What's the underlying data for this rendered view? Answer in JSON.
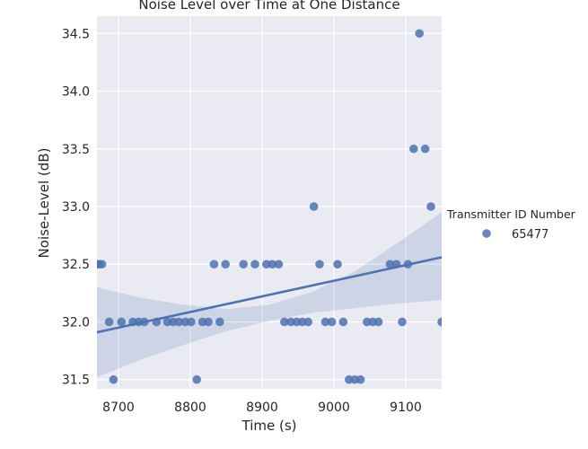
{
  "chart_data": {
    "type": "scatter",
    "title": "Noise Level over Time at One Distance",
    "xlabel": "Time (s)",
    "ylabel": "Noise-Level (dB)",
    "xlim": [
      8670,
      9150
    ],
    "ylim": [
      31.42,
      34.65
    ],
    "xticks": [
      8700,
      8800,
      8900,
      9000,
      9100
    ],
    "yticks": [
      31.5,
      32.0,
      32.5,
      33.0,
      33.5,
      34.0,
      34.5
    ],
    "xtick_labels": [
      "8700",
      "8800",
      "8900",
      "9000",
      "9100"
    ],
    "ytick_labels": [
      "31.5",
      "32.0",
      "32.5",
      "33.0",
      "33.5",
      "34.0",
      "34.5"
    ],
    "grid": true,
    "legend": {
      "title": "Transmitter ID Number",
      "placement": "right",
      "entries": [
        "65477"
      ]
    },
    "series": [
      {
        "name": "65477",
        "color": "#4c72b0",
        "points": [
          [
            8670,
            32.5
          ],
          [
            8673,
            32.5
          ],
          [
            8677,
            32.5
          ],
          [
            8687,
            32.0
          ],
          [
            8693,
            31.5
          ],
          [
            8704,
            32.0
          ],
          [
            8720,
            32.0
          ],
          [
            8728,
            32.0
          ],
          [
            8736,
            32.0
          ],
          [
            8753,
            32.0
          ],
          [
            8768,
            32.0
          ],
          [
            8776,
            32.0
          ],
          [
            8784,
            32.0
          ],
          [
            8793,
            32.0
          ],
          [
            8801,
            32.0
          ],
          [
            8809,
            31.5
          ],
          [
            8817,
            32.0
          ],
          [
            8825,
            32.0
          ],
          [
            8833,
            32.5
          ],
          [
            8841,
            32.0
          ],
          [
            8849,
            32.5
          ],
          [
            8874,
            32.5
          ],
          [
            8890,
            32.5
          ],
          [
            8906,
            32.5
          ],
          [
            8914,
            32.5
          ],
          [
            8923,
            32.5
          ],
          [
            8931,
            32.0
          ],
          [
            8940,
            32.0
          ],
          [
            8948,
            32.0
          ],
          [
            8956,
            32.0
          ],
          [
            8964,
            32.0
          ],
          [
            8972,
            33.0
          ],
          [
            8980,
            32.5
          ],
          [
            8988,
            32.0
          ],
          [
            8997,
            32.0
          ],
          [
            9005,
            32.5
          ],
          [
            9013,
            32.0
          ],
          [
            9021,
            31.5
          ],
          [
            9029,
            31.5
          ],
          [
            9037,
            31.5
          ],
          [
            9046,
            32.0
          ],
          [
            9054,
            32.0
          ],
          [
            9062,
            32.0
          ],
          [
            9078,
            32.5
          ],
          [
            9087,
            32.5
          ],
          [
            9095,
            32.0
          ],
          [
            9103,
            32.5
          ],
          [
            9111,
            33.5
          ],
          [
            9119,
            34.5
          ],
          [
            9127,
            33.5
          ],
          [
            9135,
            33.0
          ],
          [
            9150,
            32.0
          ]
        ]
      }
    ],
    "regression": {
      "x": [
        8670,
        9150
      ],
      "y": [
        31.91,
        32.56
      ]
    },
    "confidence_band": {
      "x": [
        8670,
        8730,
        8790,
        8850,
        8910,
        8970,
        9030,
        9090,
        9150
      ],
      "lower": [
        31.52,
        31.67,
        31.8,
        31.92,
        32.01,
        32.08,
        32.12,
        32.16,
        32.19
      ],
      "upper": [
        32.3,
        32.21,
        32.15,
        32.11,
        32.15,
        32.26,
        32.44,
        32.69,
        32.95
      ]
    }
  }
}
